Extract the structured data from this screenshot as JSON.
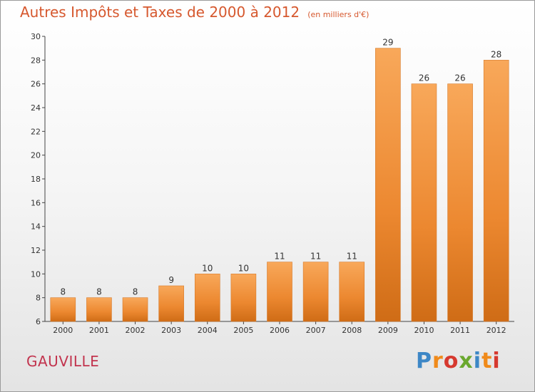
{
  "chart_data": {
    "type": "bar",
    "title": "Autres Impôts et Taxes de 2000 à 2012",
    "subtitle": "(en milliers d'€)",
    "categories": [
      "2000",
      "2001",
      "2002",
      "2003",
      "2004",
      "2005",
      "2006",
      "2007",
      "2008",
      "2009",
      "2010",
      "2011",
      "2012"
    ],
    "values": [
      8,
      8,
      8,
      9,
      10,
      10,
      11,
      11,
      11,
      29,
      26,
      26,
      28
    ],
    "ylim": [
      6,
      30
    ],
    "yticks": [
      6,
      8,
      10,
      12,
      14,
      16,
      18,
      20,
      22,
      24,
      26,
      28,
      30
    ],
    "grid": false,
    "bar_color": "#f0913c"
  },
  "footer": {
    "commune": "GAUVILLE"
  },
  "logo": {
    "text": "Proxiti",
    "colors": [
      "#3d87c6",
      "#f08a1a",
      "#d6392f",
      "#6aa82e"
    ]
  }
}
